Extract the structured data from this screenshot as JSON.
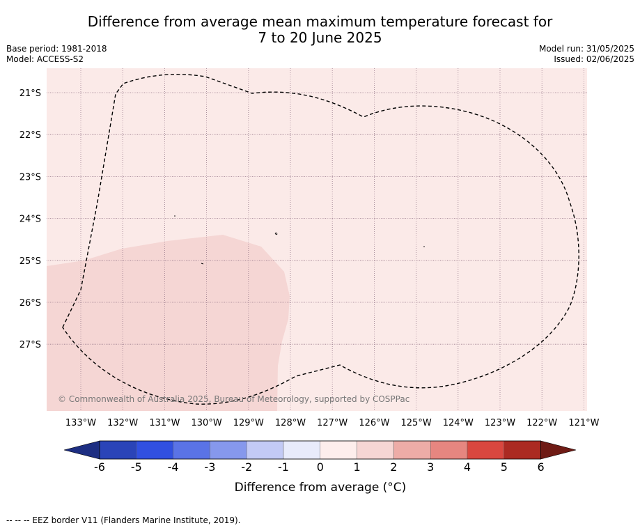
{
  "title": {
    "line1": "Difference from average mean maximum temperature forecast for",
    "line2": "7 to 20 June 2025"
  },
  "meta_left": {
    "base_period": "Base period: 1981-2018",
    "model": "Model: ACCESS-S2"
  },
  "meta_right": {
    "model_run": "Model run: 31/05/2025",
    "issued": "Issued: 02/06/2025"
  },
  "map": {
    "lon_ticks": [
      "133°W",
      "132°W",
      "131°W",
      "130°W",
      "129°W",
      "128°W",
      "127°W",
      "126°W",
      "125°W",
      "124°W",
      "123°W",
      "122°W",
      "121°W"
    ],
    "lat_ticks": [
      "21°S",
      "22°S",
      "23°S",
      "24°S",
      "25°S",
      "26°S",
      "27°S"
    ],
    "copyright": "© Commonwealth of Australia 2025, Bureau of Meteorology, supported by COSPPac",
    "base_fill_color": "#fbeae8",
    "warm_fill_color": "#f5d6d4"
  },
  "colorbar": {
    "ticks": [
      "-6",
      "-5",
      "-4",
      "-3",
      "-2",
      "-1",
      "0",
      "1",
      "2",
      "3",
      "4",
      "5",
      "6"
    ],
    "colors": [
      "#1d2e82",
      "#2a44b8",
      "#3150e0",
      "#5a73e6",
      "#8698ec",
      "#c3caf5",
      "#e8ebfb",
      "#fdeeec",
      "#f6d6d4",
      "#edaca7",
      "#e68680",
      "#d9473f",
      "#ab2a22",
      "#6f1b15"
    ],
    "label": "Difference from average (°C)"
  },
  "footer": "-- -- -- EEZ border V11 (Flanders Marine Institute, 2019)."
}
